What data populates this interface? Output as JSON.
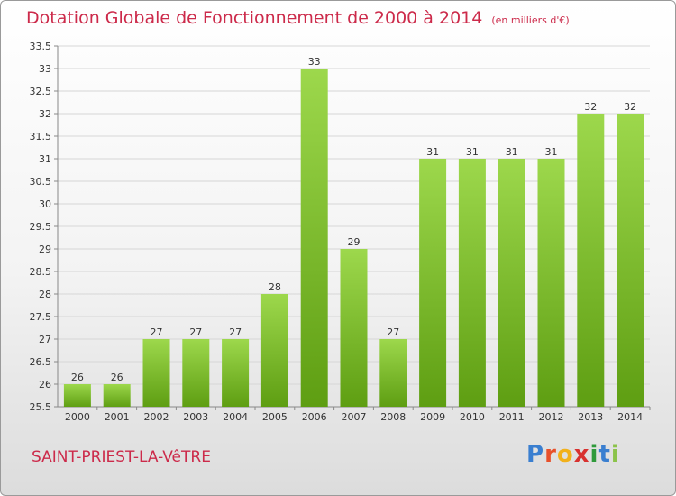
{
  "title": "Dotation Globale de Fonctionnement de 2000 à 2014",
  "unit_note": "(en milliers d'€)",
  "place": "SAINT-PRIEST-LA-VêTRE",
  "brand": "Proxiti",
  "colors": {
    "title": "#cc2a4a",
    "bar_top": "#9dd84c",
    "bar_bottom": "#5e9e12"
  },
  "chart_data": {
    "type": "bar",
    "title": "Dotation Globale de Fonctionnement de 2000 à 2014",
    "categories": [
      "2000",
      "2001",
      "2002",
      "2003",
      "2004",
      "2005",
      "2006",
      "2007",
      "2008",
      "2009",
      "2010",
      "2011",
      "2012",
      "2013",
      "2014"
    ],
    "values": [
      26,
      26,
      27,
      27,
      27,
      28,
      33,
      29,
      27,
      31,
      31,
      31,
      31,
      32,
      32
    ],
    "data_labels": [
      "26",
      "26",
      "27",
      "27",
      "27",
      "28",
      "33",
      "29",
      "27",
      "31",
      "31",
      "31",
      "31",
      "32",
      "32"
    ],
    "ylim": [
      25.5,
      33.5
    ],
    "yticks": [
      25.5,
      26,
      26.5,
      27,
      27.5,
      28,
      28.5,
      29,
      29.5,
      30,
      30.5,
      31,
      31.5,
      32,
      32.5,
      33,
      33.5
    ],
    "ytick_labels": [
      "25.5",
      "26",
      "26.5",
      "27",
      "27.5",
      "28",
      "28.5",
      "29",
      "29.5",
      "30",
      "30.5",
      "31",
      "31.5",
      "32",
      "32.5",
      "33",
      "33.5"
    ],
    "grid": true,
    "xlabel": "",
    "ylabel": ""
  }
}
